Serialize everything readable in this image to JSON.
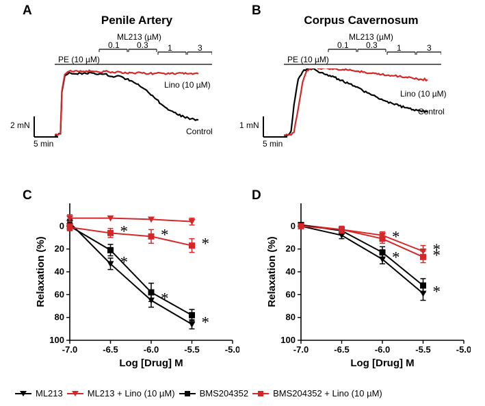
{
  "colors": {
    "black": "#000000",
    "red": "#d62728",
    "white": "#ffffff"
  },
  "panels": {
    "A": {
      "letter": "A",
      "title": "Penile Artery",
      "drug_header": "ML213 (µM)",
      "pe_label": "PE (10 µM)",
      "conc_steps": [
        "0.1",
        "0.3",
        "1",
        "3"
      ],
      "trace_red_label": "Lino (10 µM)",
      "trace_black_label": "Control",
      "scale_y": "2 mN",
      "scale_x": "5 min",
      "trace_black": [
        [
          0,
          96
        ],
        [
          4,
          96
        ],
        [
          8,
          94
        ],
        [
          10,
          30
        ],
        [
          14,
          5
        ],
        [
          20,
          0
        ],
        [
          30,
          2
        ],
        [
          40,
          1
        ],
        [
          50,
          0
        ],
        [
          60,
          3
        ],
        [
          70,
          2
        ],
        [
          80,
          6
        ],
        [
          90,
          5
        ],
        [
          100,
          10
        ],
        [
          110,
          15
        ],
        [
          120,
          22
        ],
        [
          130,
          30
        ],
        [
          140,
          40
        ],
        [
          150,
          50
        ],
        [
          160,
          58
        ],
        [
          170,
          64
        ],
        [
          180,
          68
        ],
        [
          190,
          71
        ],
        [
          200,
          73
        ]
      ],
      "trace_red": [
        [
          0,
          96
        ],
        [
          4,
          96
        ],
        [
          8,
          93
        ],
        [
          10,
          28
        ],
        [
          14,
          3
        ],
        [
          20,
          -2
        ],
        [
          30,
          -3
        ],
        [
          40,
          -2
        ],
        [
          50,
          -2
        ],
        [
          60,
          -1
        ],
        [
          70,
          -2
        ],
        [
          80,
          -1
        ],
        [
          90,
          -1
        ],
        [
          100,
          1
        ],
        [
          110,
          1
        ],
        [
          120,
          0
        ],
        [
          130,
          2
        ],
        [
          140,
          1
        ],
        [
          150,
          1
        ],
        [
          160,
          2
        ],
        [
          170,
          1
        ],
        [
          180,
          2
        ],
        [
          190,
          1
        ],
        [
          200,
          2
        ]
      ]
    },
    "B": {
      "letter": "B",
      "title": "Corpus Cavernosum",
      "drug_header": "ML213 (µM)",
      "pe_label": "PE (10 µM)",
      "conc_steps": [
        "0.1",
        "0.3",
        "1",
        "3"
      ],
      "trace_red_label": "Lino (10 µM)",
      "trace_black_label": "Control",
      "scale_y": "1 mN",
      "scale_x": "5 min",
      "trace_black": [
        [
          0,
          96
        ],
        [
          6,
          96
        ],
        [
          10,
          90
        ],
        [
          14,
          50
        ],
        [
          20,
          10
        ],
        [
          28,
          -4
        ],
        [
          36,
          -6
        ],
        [
          44,
          -4
        ],
        [
          52,
          0
        ],
        [
          60,
          3
        ],
        [
          70,
          7
        ],
        [
          80,
          12
        ],
        [
          90,
          17
        ],
        [
          100,
          22
        ],
        [
          110,
          28
        ],
        [
          120,
          33
        ],
        [
          130,
          38
        ],
        [
          140,
          43
        ],
        [
          150,
          47
        ],
        [
          160,
          51
        ],
        [
          170,
          54
        ],
        [
          180,
          57
        ],
        [
          190,
          59
        ],
        [
          200,
          60
        ]
      ],
      "trace_red": [
        [
          0,
          96
        ],
        [
          10,
          96
        ],
        [
          14,
          92
        ],
        [
          20,
          55
        ],
        [
          26,
          15
        ],
        [
          32,
          -3
        ],
        [
          40,
          -8
        ],
        [
          48,
          -6
        ],
        [
          56,
          -7
        ],
        [
          64,
          -5
        ],
        [
          72,
          -6
        ],
        [
          80,
          -4
        ],
        [
          88,
          -4
        ],
        [
          96,
          -3
        ],
        [
          104,
          -2
        ],
        [
          112,
          -1
        ],
        [
          120,
          1
        ],
        [
          128,
          1
        ],
        [
          136,
          3
        ],
        [
          144,
          4
        ],
        [
          152,
          5
        ],
        [
          160,
          6
        ],
        [
          170,
          7
        ],
        [
          180,
          9
        ],
        [
          190,
          10
        ],
        [
          200,
          11
        ]
      ]
    },
    "C": {
      "letter": "C",
      "ylabel": "Relaxation (%)",
      "xlabel": "Log [Drug] M",
      "ylim": [
        -20,
        100
      ],
      "ytick_step": 20,
      "xlim": [
        -7.0,
        -5.0
      ],
      "xtick_step": 0.5,
      "series": {
        "ml213": {
          "x": [
            -7.0,
            -6.5,
            -6.0,
            -5.5
          ],
          "y": [
            -3,
            33,
            65,
            86
          ],
          "err": [
            3,
            5,
            6,
            4
          ],
          "marker": "tri-down",
          "color": "#000000"
        },
        "ml213_lino": {
          "x": [
            -7.0,
            -6.5,
            -6.0,
            -5.5
          ],
          "y": [
            -7,
            -7,
            -6,
            -4
          ],
          "err": [
            3,
            0,
            0,
            3
          ],
          "marker": "tri-down",
          "color": "#d62728"
        },
        "bms": {
          "x": [
            -7.0,
            -6.5,
            -6.0,
            -5.5
          ],
          "y": [
            0,
            21,
            58,
            78
          ],
          "err": [
            3,
            5,
            8,
            5
          ],
          "marker": "square",
          "color": "#000000"
        },
        "bms_lino": {
          "x": [
            -7.0,
            -6.5,
            -6.0,
            -5.5
          ],
          "y": [
            1,
            6,
            9,
            17
          ],
          "err": [
            3,
            4,
            6,
            6
          ],
          "marker": "square",
          "color": "#d62728"
        }
      },
      "stars": [
        [
          -6.5,
          33
        ],
        [
          -6.5,
          6
        ],
        [
          -6.0,
          65
        ],
        [
          -6.0,
          9
        ],
        [
          -5.5,
          86
        ],
        [
          -5.5,
          17
        ]
      ]
    },
    "D": {
      "letter": "D",
      "ylabel": "Relaxation (%)",
      "xlabel": "Log [Drug] M",
      "ylim": [
        -20,
        100
      ],
      "ytick_step": 20,
      "xlim": [
        -7.0,
        -5.0
      ],
      "xtick_step": 0.5,
      "series": {
        "ml213": {
          "x": [
            -7.0,
            -6.5,
            -6.0,
            -5.5
          ],
          "y": [
            0,
            8,
            29,
            59
          ],
          "err": [
            2,
            3,
            4,
            6
          ],
          "marker": "tri-down",
          "color": "#000000"
        },
        "ml213_lino": {
          "x": [
            -7.0,
            -6.5,
            -6.0,
            -5.5
          ],
          "y": [
            -1,
            3,
            8,
            22
          ],
          "err": [
            2,
            2,
            3,
            5
          ],
          "marker": "tri-down",
          "color": "#d62728"
        },
        "bms": {
          "x": [
            -7.0,
            -6.5,
            -6.0,
            -5.5
          ],
          "y": [
            -1,
            4,
            23,
            52
          ],
          "err": [
            2,
            3,
            5,
            6
          ],
          "marker": "square",
          "color": "#000000"
        },
        "bms_lino": {
          "x": [
            -7.0,
            -6.5,
            -6.0,
            -5.5
          ],
          "y": [
            0,
            3,
            11,
            27
          ],
          "err": [
            2,
            3,
            4,
            5
          ],
          "marker": "square",
          "color": "#d62728"
        }
      },
      "stars": [
        [
          -6.0,
          29
        ],
        [
          -6.0,
          11
        ],
        [
          -5.5,
          59
        ],
        [
          -5.5,
          27
        ],
        [
          -5.5,
          22
        ]
      ]
    }
  },
  "legend": {
    "ml213": "ML213",
    "ml213_lino": "ML213 + Lino (10 µM)",
    "bms": "BMS204352",
    "bms_lino": "BMS204352 + Lino (10 µM)"
  },
  "typography": {
    "panel_letter_fontsize": 19,
    "panel_title_fontsize": 17,
    "label_fontsize": 12,
    "axis_label_fontsize": 14
  }
}
